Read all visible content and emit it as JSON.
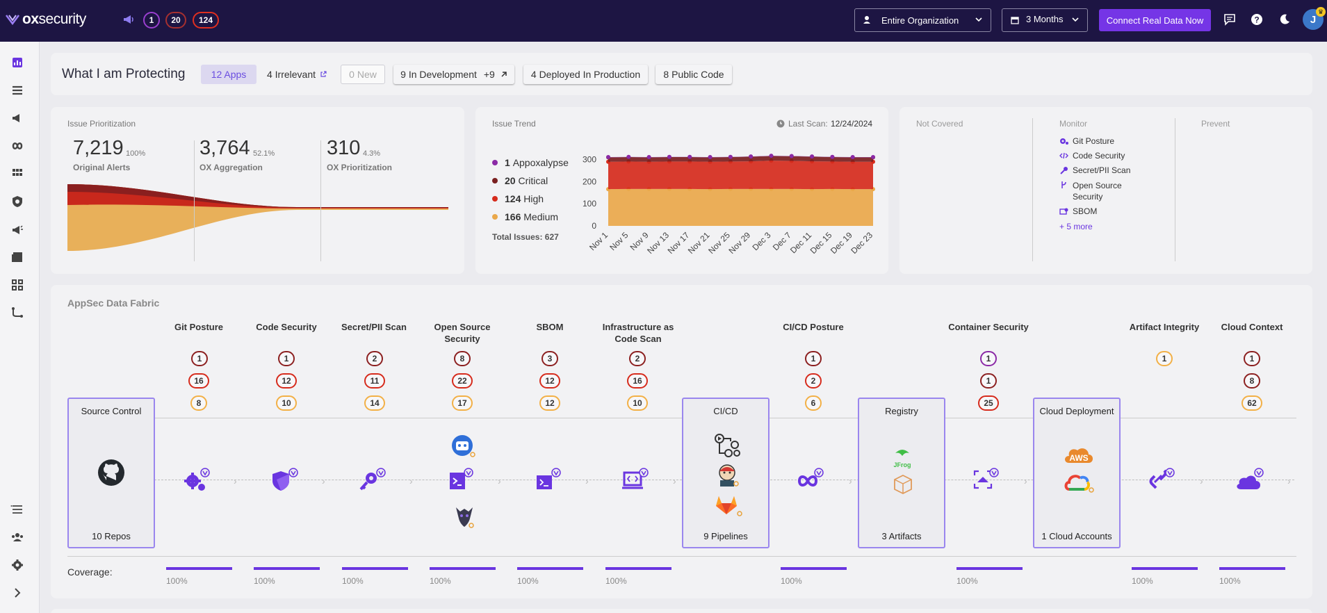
{
  "brand": {
    "prefix": "ox",
    "suffix": "security"
  },
  "topbar": {
    "badges": [
      "1",
      "20",
      "124"
    ],
    "org_select": "Entire Organization",
    "period_select": "3 Months",
    "connect_label": "Connect Real Data Now",
    "avatar_initial": "J"
  },
  "protect": {
    "title": "What I am Protecting",
    "apps": "12 Apps",
    "irrelevant": "4 Irrelevant",
    "new": "0 New",
    "in_dev": "9 In Development",
    "in_dev_plus": "+9",
    "deployed": "4 Deployed In Production",
    "public_code": "8 Public Code"
  },
  "prioritization": {
    "title": "Issue Prioritization",
    "original": {
      "value": "7,219",
      "pct": "100%",
      "label": "Original Alerts"
    },
    "aggregation": {
      "value": "3,764",
      "pct": "52.1%",
      "label": "OX Aggregation"
    },
    "prioritization": {
      "value": "310",
      "pct": "4.3%",
      "label": "OX Prioritization"
    }
  },
  "trend": {
    "title": "Issue Trend",
    "last_scan_label": "Last Scan:",
    "last_scan_value": "12/24/2024",
    "legend": [
      {
        "count": "1",
        "name": "Appoxalypse",
        "color": "#8b2aa6"
      },
      {
        "count": "20",
        "name": "Critical",
        "color": "#7a2020"
      },
      {
        "count": "124",
        "name": "High",
        "color": "#d62b1c"
      },
      {
        "count": "166",
        "name": "Medium",
        "color": "#eaa84a"
      }
    ],
    "total": "Total Issues: 627"
  },
  "chart_data": {
    "type": "area",
    "x": [
      "Nov 1",
      "Nov 5",
      "Nov 9",
      "Nov 13",
      "Nov 17",
      "Nov 21",
      "Nov 25",
      "Nov 29",
      "Dec 3",
      "Dec 7",
      "Dec 11",
      "Dec 15",
      "Dec 19",
      "Dec 23"
    ],
    "y_ticks": [
      "0",
      "100",
      "200",
      "300"
    ],
    "ylim": [
      0,
      330
    ],
    "series": [
      {
        "name": "Medium",
        "color": "#eaa84a",
        "values": [
          166,
          167,
          167,
          167,
          167,
          166,
          167,
          167,
          167,
          167,
          166,
          167,
          166,
          166
        ]
      },
      {
        "name": "High",
        "color": "#d62b1c",
        "values": [
          124,
          124,
          123,
          124,
          124,
          124,
          124,
          125,
          128,
          127,
          126,
          124,
          124,
          124
        ]
      },
      {
        "name": "Critical",
        "color": "#7a2020",
        "values": [
          20,
          20,
          20,
          20,
          20,
          20,
          20,
          21,
          21,
          21,
          21,
          20,
          20,
          20
        ]
      },
      {
        "name": "Appoxalypse",
        "color": "#8b2aa6",
        "values": [
          1,
          1,
          1,
          1,
          1,
          1,
          1,
          1,
          1,
          1,
          1,
          1,
          1,
          1
        ]
      }
    ]
  },
  "coverage": {
    "not_covered": "Not Covered",
    "monitor": "Monitor",
    "prevent": "Prevent",
    "monitor_items": [
      "Git Posture",
      "Code Security",
      "Secret/PII Scan",
      "Open Source Security",
      "SBOM"
    ],
    "more": "+ 5 more"
  },
  "fabric": {
    "title": "AppSec Data Fabric",
    "coverage_label": "Coverage:",
    "columns": [
      {
        "name": "Git Posture",
        "counts": {
          "critical": "1",
          "high": "16",
          "medium": "8"
        },
        "coverage": "100%"
      },
      {
        "name": "Code Security",
        "counts": {
          "critical": "1",
          "high": "12",
          "medium": "10"
        },
        "coverage": "100%"
      },
      {
        "name": "Secret/PII Scan",
        "counts": {
          "critical": "2",
          "high": "11",
          "medium": "14"
        },
        "coverage": "100%"
      },
      {
        "name": "Open Source Security",
        "counts": {
          "critical": "8",
          "high": "22",
          "medium": "17"
        },
        "coverage": "100%"
      },
      {
        "name": "SBOM",
        "counts": {
          "critical": "3",
          "high": "12",
          "medium": "12"
        },
        "coverage": "100%"
      },
      {
        "name": "Infrastructure as Code Scan",
        "counts": {
          "critical": "2",
          "high": "16",
          "medium": "10"
        },
        "coverage": "100%"
      },
      {
        "name": "CI/CD Posture",
        "counts": {
          "critical": "1",
          "high": "2",
          "medium": "6"
        },
        "coverage": "100%"
      },
      {
        "name": "Container Security",
        "counts": {
          "apo": "1",
          "critical": "1",
          "high": "25"
        },
        "coverage": "100%"
      },
      {
        "name": "Artifact Integrity",
        "counts": {
          "medium": "1"
        },
        "coverage": "100%"
      },
      {
        "name": "Cloud Context",
        "counts": {
          "critical": "1",
          "high": "8",
          "medium": "62"
        },
        "coverage": "100%"
      }
    ],
    "boxes": {
      "source": {
        "title": "Source Control",
        "footer": "10 Repos"
      },
      "cicd": {
        "title": "CI/CD",
        "footer": "9 Pipelines"
      },
      "registry": {
        "title": "Registry",
        "footer": "3 Artifacts"
      },
      "cloud": {
        "title": "Cloud Deployment",
        "footer": "1 Cloud Accounts"
      }
    },
    "logos": {
      "jfrog": "JFrog",
      "aws": "AWS"
    }
  }
}
